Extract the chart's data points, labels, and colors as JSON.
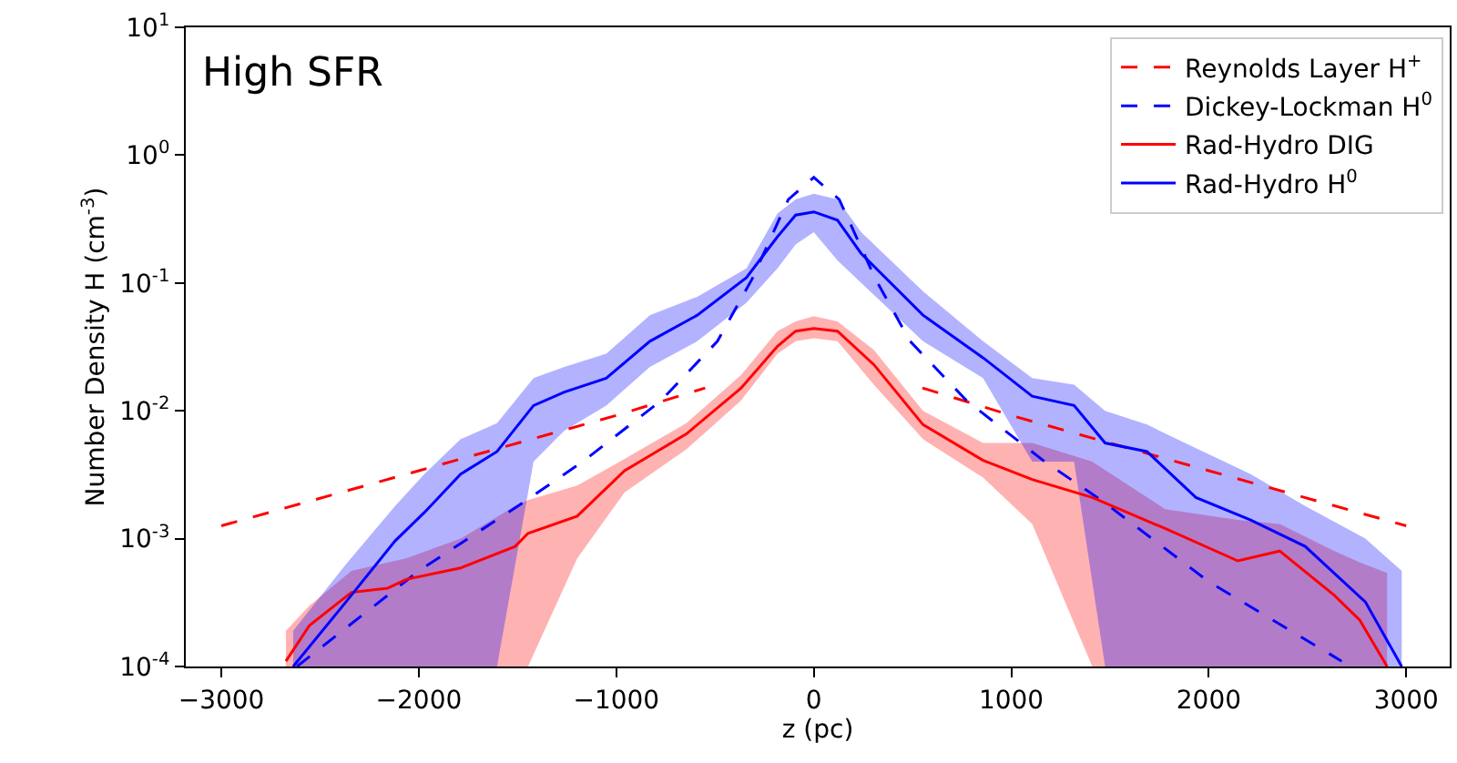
{
  "chart_data": {
    "type": "line",
    "xlabel": "z (pc)",
    "ylabel": "Number Density H (cm$^{-3}$)",
    "annotations": [
      "High SFR"
    ],
    "xlim": [
      -3180,
      3220
    ],
    "xticks": [
      {
        "value": -3000,
        "label": "−3000"
      },
      {
        "value": -2000,
        "label": "−2000"
      },
      {
        "value": -1000,
        "label": "−1000"
      },
      0,
      1000,
      2000,
      3000
    ],
    "ylim": [
      0.0001,
      10
    ],
    "yticks": [
      {
        "value": 0.0001,
        "label": "10$^{-4}$"
      },
      {
        "value": 0.001,
        "label": "10$^{-3}$"
      },
      {
        "value": 0.01,
        "label": "10$^{-2}$"
      },
      {
        "value": 0.1,
        "label": "10$^{-1}$"
      },
      {
        "value": 1,
        "label": "10$^{0}$"
      },
      {
        "value": 10,
        "label": "10$^{1}$"
      }
    ],
    "log": "y",
    "legend": "top right",
    "marker": "none",
    "series": [
      {
        "name": "Reynolds Layer H$^{+}$",
        "color": "#ff0000",
        "line_style": "dashed",
        "x": [
          -3000,
          -2000,
          -1000,
          -550,
          0,
          550,
          1000,
          2000,
          3000
        ],
        "values": [
          0.00126,
          0.0034,
          0.0092,
          0.0151,
          null,
          0.0151,
          0.0092,
          0.0034,
          0.00126
        ]
      },
      {
        "name": "Dickey-Lockman H$^{0}$",
        "color": "#0000ff",
        "line_style": "dashed",
        "x": [
          -2617,
          -2000,
          -1475,
          -1161,
          -774,
          -488,
          -313,
          -129,
          0,
          129,
          313,
          488,
          774,
          1161,
          1475,
          2000,
          2673
        ],
        "values": [
          0.0001,
          0.00056,
          0.0019,
          0.0041,
          0.012,
          0.035,
          0.107,
          0.45,
          0.67,
          0.45,
          0.107,
          0.035,
          0.012,
          0.0041,
          0.0019,
          0.00046,
          0.00011
        ]
      },
      {
        "name": "Rad-Hydro DIG",
        "color": "#ff0000",
        "line_style": "solid",
        "x": [
          -2673,
          -2553,
          -2341,
          -2157,
          -2064,
          -1788,
          -1512,
          -1447,
          -1198,
          -958,
          -645,
          -369,
          -184,
          -92,
          0,
          120,
          304,
          553,
          857,
          1106,
          1410,
          1779,
          2147,
          2359,
          2636,
          2765,
          2903
        ],
        "values": [
          0.00011,
          0.00021,
          0.00038,
          0.00041,
          0.00048,
          0.00059,
          0.00087,
          0.0011,
          0.0015,
          0.0034,
          0.0066,
          0.015,
          0.032,
          0.042,
          0.044,
          0.042,
          0.023,
          0.0078,
          0.0041,
          0.0029,
          0.0021,
          0.0012,
          0.00067,
          0.0008,
          0.00036,
          0.00023,
          0.0001
        ],
        "lower": [
          0.0001,
          0.0001,
          0.0001,
          0.0001,
          0.0001,
          0.0001,
          0.0001,
          0.0001,
          0.0007,
          0.0023,
          0.005,
          0.012,
          0.028,
          0.035,
          0.037,
          0.035,
          0.016,
          0.006,
          0.003,
          0.0013,
          0.0001,
          0.0001,
          0.0001,
          0.0001,
          0.0001,
          0.0001,
          0.0001
        ],
        "upper": [
          0.00019,
          0.0003,
          0.00056,
          0.00065,
          0.0007,
          0.001,
          0.0018,
          0.002,
          0.0026,
          0.0042,
          0.008,
          0.019,
          0.042,
          0.05,
          0.055,
          0.05,
          0.03,
          0.01,
          0.0056,
          0.0056,
          0.004,
          0.0017,
          0.0014,
          0.0013,
          0.0008,
          0.00065,
          0.00054
        ]
      },
      {
        "name": "Rad-Hydro H$^{0}$",
        "color": "#0000ff",
        "line_style": "solid",
        "x": [
          -2636,
          -2369,
          -2120,
          -1972,
          -1788,
          -1604,
          -1419,
          -1263,
          -1051,
          -830,
          -590,
          -341,
          -184,
          -92,
          0,
          120,
          240,
          553,
          857,
          1106,
          1318,
          1475,
          1687,
          1935,
          2212,
          2488,
          2793,
          2977
        ],
        "values": [
          0.0001,
          0.00032,
          0.00096,
          0.0016,
          0.0032,
          0.0048,
          0.011,
          0.014,
          0.018,
          0.035,
          0.056,
          0.11,
          0.23,
          0.34,
          0.36,
          0.31,
          0.17,
          0.056,
          0.026,
          0.013,
          0.011,
          0.0056,
          0.0048,
          0.0021,
          0.0014,
          0.00087,
          0.00032,
          0.0001
        ],
        "lower": [
          0.0001,
          0.0001,
          0.0001,
          0.0001,
          0.0001,
          0.0001,
          0.004,
          0.007,
          0.011,
          0.022,
          0.035,
          0.07,
          0.13,
          0.2,
          0.25,
          0.15,
          0.1,
          0.035,
          0.018,
          0.004,
          0.004,
          0.0001,
          0.0001,
          0.0001,
          0.0001,
          0.0001,
          0.0001,
          0.0001
        ],
        "upper": [
          0.00019,
          0.00063,
          0.0018,
          0.0032,
          0.006,
          0.008,
          0.018,
          0.022,
          0.028,
          0.056,
          0.078,
          0.13,
          0.35,
          0.45,
          0.5,
          0.45,
          0.25,
          0.086,
          0.035,
          0.018,
          0.016,
          0.01,
          0.0078,
          0.0051,
          0.0032,
          0.0018,
          0.001,
          0.00056
        ]
      }
    ]
  }
}
